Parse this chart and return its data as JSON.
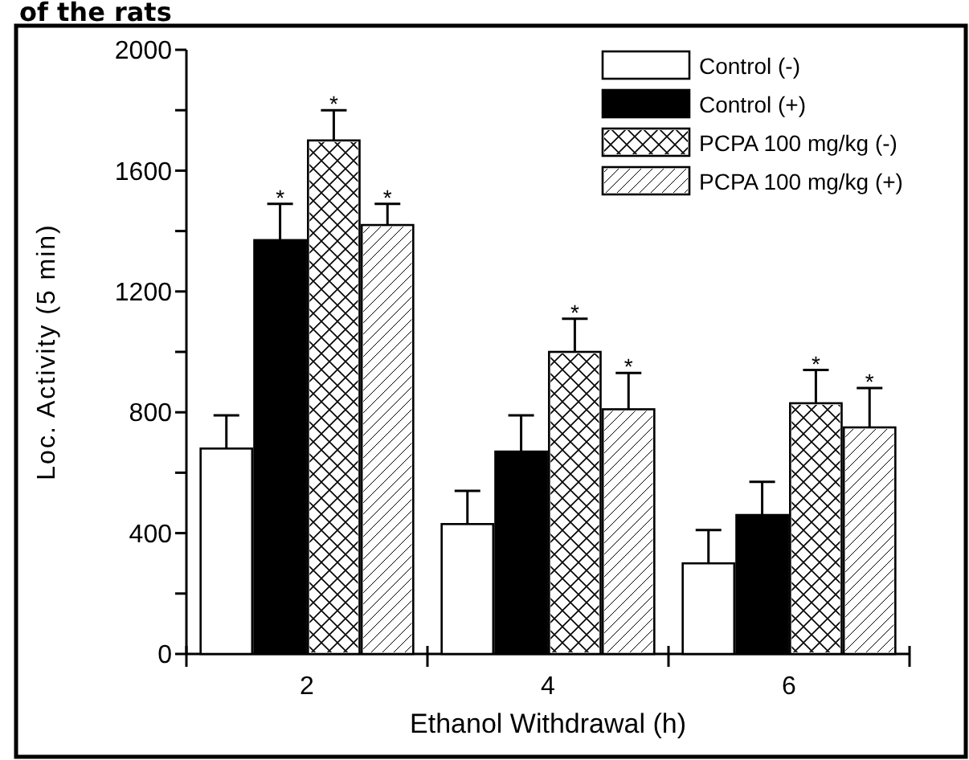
{
  "chart_data": {
    "type": "bar",
    "title": "of the rats",
    "xlabel": "Ethanol Withdrawal (h)",
    "ylabel": "Loc. Activity (5 min)",
    "categories": [
      "2",
      "4",
      "6"
    ],
    "series": [
      {
        "name": "Control (-)",
        "color": "#ffffff",
        "values": [
          680,
          430,
          300
        ],
        "errors": [
          110,
          110,
          110
        ]
      },
      {
        "name": "Control (+)",
        "color": "#000000",
        "values": [
          1370,
          670,
          460
        ],
        "errors": [
          120,
          120,
          110
        ],
        "value_labels": [
          "*",
          null,
          null
        ]
      },
      {
        "name": "PCPA 100 mg/kg (-)",
        "color": "#ffffff",
        "values": [
          1700,
          1000,
          830
        ],
        "errors": [
          100,
          110,
          110
        ],
        "value_labels": [
          "*",
          "*",
          "*"
        ]
      },
      {
        "name": "PCPA 100 mg/kg (+)",
        "color": "#ffffff",
        "values": [
          1420,
          810,
          750
        ],
        "errors": [
          70,
          120,
          130
        ],
        "value_labels": [
          "*",
          "*",
          "*"
        ]
      }
    ],
    "ylim": [
      0,
      2000
    ],
    "yticks": [
      0,
      {
        "value": 200,
        "label": null
      },
      400,
      {
        "value": 600,
        "label": null
      },
      800,
      {
        "value": 1000,
        "label": null
      },
      1200,
      {
        "value": 1400,
        "label": null
      },
      1600,
      {
        "value": 1800,
        "label": null
      },
      2000
    ],
    "grid": false,
    "legend": "top right"
  }
}
